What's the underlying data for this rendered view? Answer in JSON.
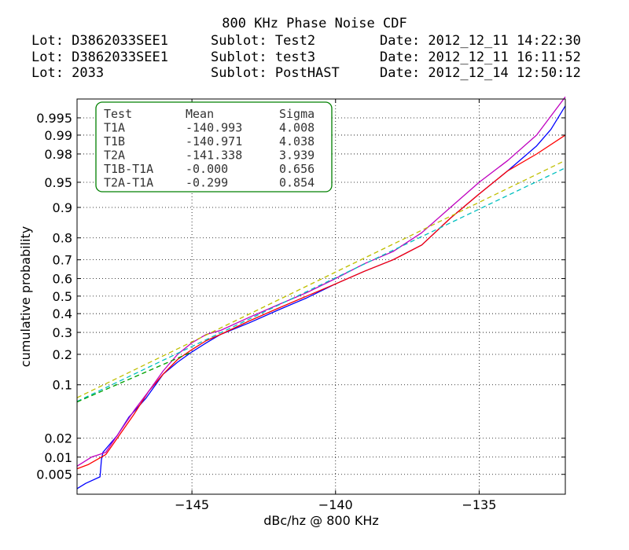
{
  "title": "800 KHz Phase Noise CDF",
  "info_rows": [
    {
      "lot": "Lot: D3862033SEE1",
      "sublot": "Sublot: Test2",
      "date": "Date: 2012_12_11 14:22:30"
    },
    {
      "lot": "Lot: D3862033SEE1",
      "sublot": "Sublot: test3",
      "date": "Date: 2012_12_11 16:11:52"
    },
    {
      "lot": "Lot: 2033",
      "sublot": "Sublot: PostHAST",
      "date": "Date: 2012_12_14 12:50:12"
    }
  ],
  "chart_data": {
    "type": "line",
    "title": "800 KHz Phase Noise CDF",
    "xlabel": "dBc/hz @ 800 KHz",
    "ylabel": "cumulative probability",
    "xlim": [
      -149.0,
      -132.0
    ],
    "y_scale": "probit (normal probability)",
    "y_ticks": [
      0.005,
      0.01,
      0.02,
      0.1,
      0.2,
      0.3,
      0.4,
      0.5,
      0.6,
      0.7,
      0.8,
      0.9,
      0.95,
      0.98,
      0.99,
      0.995
    ],
    "y_tick_labels": [
      "0.005",
      "0.01",
      "0.02",
      "0.1",
      "0.2",
      "0.3",
      "0.4",
      "0.5",
      "0.6",
      "0.7",
      "0.8",
      "0.9",
      "0.95",
      "0.98",
      "0.99",
      "0.995"
    ],
    "x_ticks": [
      -145,
      -140,
      -135
    ],
    "x_tick_labels": [
      "−145",
      "−140",
      "−135"
    ],
    "grid": true,
    "legend_table": {
      "position": "top-left",
      "headers": [
        "Test",
        "Mean",
        "Sigma"
      ],
      "rows": [
        [
          "T1A",
          "-140.993",
          "4.008"
        ],
        [
          "T1B",
          "-140.971",
          "4.038"
        ],
        [
          "T2A",
          "-141.338",
          "3.939"
        ],
        [
          "T1B-T1A",
          "-0.000",
          "0.656"
        ],
        [
          "T2A-T1A",
          "-0.299",
          "0.854"
        ]
      ]
    },
    "series": [
      {
        "color": "#0000ff",
        "style": "solid",
        "points": [
          [
            -149.0,
            0.0027
          ],
          [
            -148.7,
            0.0034
          ],
          [
            -148.2,
            0.0045
          ],
          [
            -148.15,
            0.009
          ],
          [
            -148.1,
            0.012
          ],
          [
            -147.6,
            0.022
          ],
          [
            -147.2,
            0.04
          ],
          [
            -146.6,
            0.07
          ],
          [
            -146.0,
            0.13
          ],
          [
            -145.5,
            0.17
          ],
          [
            -145.0,
            0.21
          ],
          [
            -144.5,
            0.25
          ],
          [
            -144.0,
            0.29
          ],
          [
            -143.0,
            0.35
          ],
          [
            -142.0,
            0.42
          ],
          [
            -141.0,
            0.49
          ],
          [
            -140.0,
            0.57
          ],
          [
            -139.0,
            0.64
          ],
          [
            -138.0,
            0.7
          ],
          [
            -137.0,
            0.77
          ],
          [
            -136.0,
            0.87
          ],
          [
            -135.0,
            0.93
          ],
          [
            -134.0,
            0.965
          ],
          [
            -133.0,
            0.985
          ],
          [
            -132.5,
            0.992
          ],
          [
            -132.0,
            0.997
          ]
        ]
      },
      {
        "color": "#ff0000",
        "style": "solid",
        "points": [
          [
            -149.0,
            0.0063
          ],
          [
            -148.6,
            0.0075
          ],
          [
            -148.0,
            0.011
          ],
          [
            -147.6,
            0.02
          ],
          [
            -147.0,
            0.045
          ],
          [
            -146.5,
            0.085
          ],
          [
            -146.0,
            0.13
          ],
          [
            -145.5,
            0.18
          ],
          [
            -145.0,
            0.22
          ],
          [
            -144.5,
            0.26
          ],
          [
            -144.0,
            0.29
          ],
          [
            -143.0,
            0.36
          ],
          [
            -142.0,
            0.43
          ],
          [
            -141.0,
            0.5
          ],
          [
            -140.0,
            0.57
          ],
          [
            -139.0,
            0.64
          ],
          [
            -138.0,
            0.7
          ],
          [
            -137.0,
            0.77
          ],
          [
            -136.0,
            0.87
          ],
          [
            -135.0,
            0.93
          ],
          [
            -134.0,
            0.965
          ],
          [
            -133.0,
            0.98
          ],
          [
            -132.0,
            0.99
          ]
        ]
      },
      {
        "color": "#bf00bf",
        "style": "solid",
        "points": [
          [
            -149.0,
            0.007
          ],
          [
            -148.5,
            0.01
          ],
          [
            -148.0,
            0.012
          ],
          [
            -147.6,
            0.022
          ],
          [
            -147.0,
            0.05
          ],
          [
            -146.5,
            0.085
          ],
          [
            -146.0,
            0.14
          ],
          [
            -145.5,
            0.2
          ],
          [
            -145.0,
            0.25
          ],
          [
            -144.5,
            0.29
          ],
          [
            -144.0,
            0.31
          ],
          [
            -143.0,
            0.38
          ],
          [
            -142.0,
            0.45
          ],
          [
            -141.0,
            0.52
          ],
          [
            -140.0,
            0.6
          ],
          [
            -139.0,
            0.68
          ],
          [
            -138.0,
            0.74
          ],
          [
            -137.0,
            0.82
          ],
          [
            -136.0,
            0.9
          ],
          [
            -135.0,
            0.95
          ],
          [
            -134.0,
            0.975
          ],
          [
            -133.0,
            0.99
          ],
          [
            -132.0,
            0.998
          ]
        ]
      },
      {
        "color": "#00bfbf",
        "style": "dashed",
        "points": [
          [
            -149.0,
            0.064
          ],
          [
            -132.0,
            0.968
          ]
        ]
      },
      {
        "color": "#00a000",
        "style": "dashed",
        "points": [
          [
            -149.0,
            0.063
          ],
          [
            -145.0,
            0.21
          ]
        ]
      },
      {
        "color": "#bfbf00",
        "style": "dashed",
        "points": [
          [
            -149.0,
            0.071
          ],
          [
            -132.0,
            0.975
          ]
        ]
      }
    ]
  }
}
